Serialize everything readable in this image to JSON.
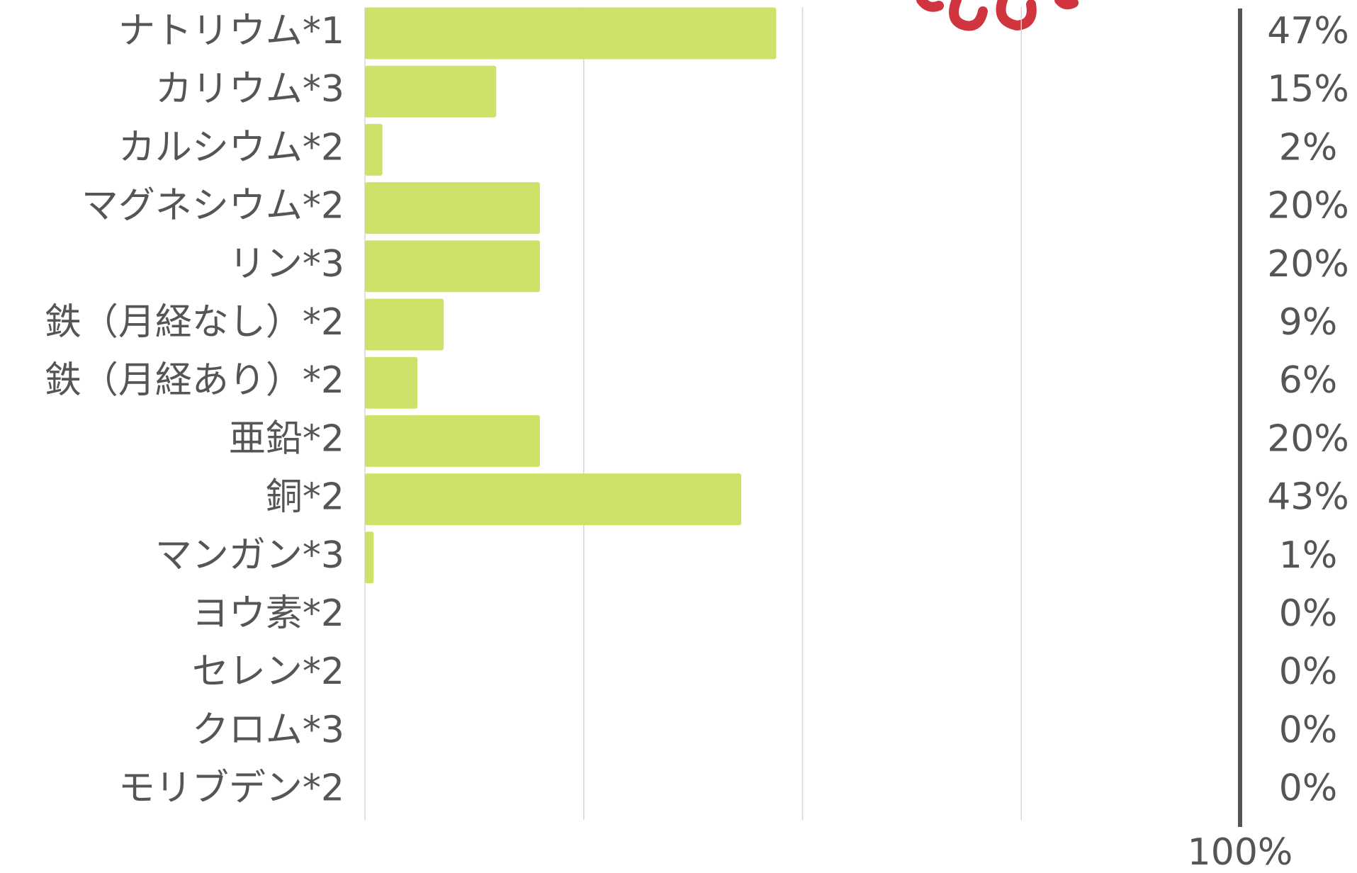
{
  "chart_data": {
    "type": "hbar",
    "categories": [
      "ナトリウム*1",
      "カリウム*3",
      "カルシウム*2",
      "マグネシウム*2",
      "リン*3",
      "鉄（月経なし）*2",
      "鉄（月経あり）*2",
      "亜鉛*2",
      "銅*2",
      "マンガン*3",
      "ヨウ素*2",
      "セレン*2",
      "クロム*3",
      "モリブデン*2"
    ],
    "values": [
      47,
      15,
      2,
      20,
      20,
      9,
      6,
      20,
      43,
      1,
      0,
      0,
      0,
      0
    ],
    "value_labels": [
      "47%",
      "15%",
      "2%",
      "20%",
      "20%",
      "9%",
      "6%",
      "20%",
      "43%",
      "1%",
      "0%",
      "0%",
      "0%",
      "0%"
    ],
    "color": "#cce268",
    "xlim": [
      0,
      100
    ],
    "xticks": [
      {
        "value": 100,
        "label": "100%"
      }
    ],
    "xgrid": [
      0,
      25,
      50,
      75
    ],
    "grid": true
  }
}
